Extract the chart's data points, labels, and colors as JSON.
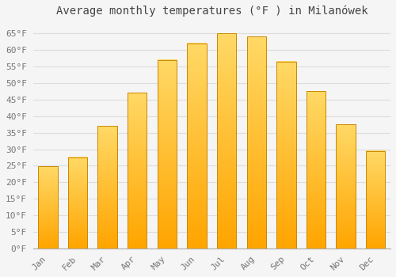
{
  "title": "Average monthly temperatures (°F ) in Milanówek",
  "months": [
    "Jan",
    "Feb",
    "Mar",
    "Apr",
    "May",
    "Jun",
    "Jul",
    "Aug",
    "Sep",
    "Oct",
    "Nov",
    "Dec"
  ],
  "values": [
    24.8,
    27.5,
    37.0,
    47.0,
    57.0,
    62.0,
    65.0,
    64.0,
    56.5,
    47.5,
    37.5,
    29.5
  ],
  "bar_color_top": "#FFD966",
  "bar_color_bottom": "#FFA500",
  "bar_edge_color": "#CC8800",
  "background_color": "#F5F5F5",
  "plot_bg_color": "#F5F5F5",
  "grid_color": "#DDDDDD",
  "text_color": "#777777",
  "title_color": "#444444",
  "ylim": [
    0,
    68
  ],
  "yticks": [
    0,
    5,
    10,
    15,
    20,
    25,
    30,
    35,
    40,
    45,
    50,
    55,
    60,
    65
  ],
  "title_fontsize": 10,
  "tick_fontsize": 8,
  "bar_width": 0.65
}
